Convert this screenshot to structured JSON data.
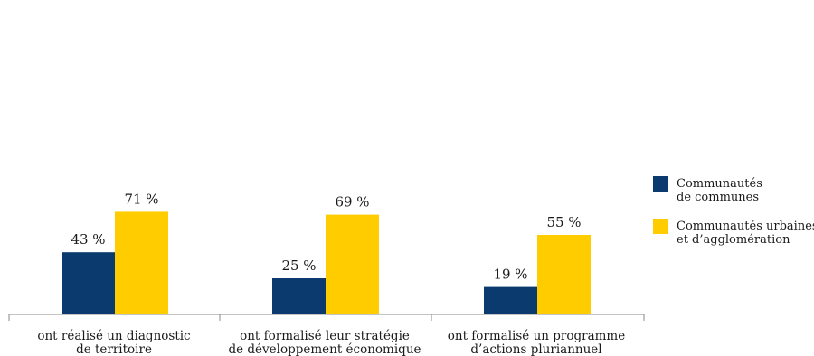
{
  "chart_data": {
    "type": "bar",
    "categories": [
      [
        "ont réalisé un diagnostic",
        "de territoire"
      ],
      [
        "ont formalisé leur stratégie",
        "de développement économique"
      ],
      [
        "ont formalisé un programme",
        "d’actions pluriannuel"
      ]
    ],
    "series": [
      {
        "name": [
          "Communautés",
          "de communes"
        ],
        "color": "#0b3a6e",
        "values": [
          43,
          25,
          19
        ],
        "labels": [
          "43 %",
          "25 %",
          "19 %"
        ]
      },
      {
        "name": [
          "Communautés urbaines",
          "et d’agglomération"
        ],
        "color": "#ffcc00",
        "values": [
          71,
          69,
          55
        ],
        "labels": [
          "71 %",
          "69 %",
          "55 %"
        ]
      }
    ],
    "unit": "%",
    "ylim": [
      0,
      100
    ],
    "grid": false,
    "legend_position": "right"
  }
}
